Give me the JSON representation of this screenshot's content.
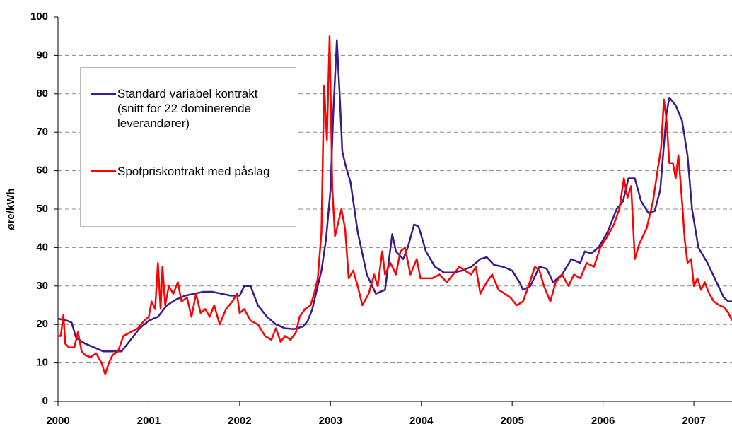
{
  "chart_data": {
    "type": "line",
    "y_label": "øre/kWh",
    "xlim": [
      2000,
      2007.42
    ],
    "xticks": [
      2000,
      2001,
      2002,
      2003,
      2004,
      2005,
      2006,
      2007
    ],
    "ylim": [
      0,
      100
    ],
    "yticks": [
      0,
      10,
      20,
      30,
      40,
      50,
      60,
      70,
      80,
      90,
      100
    ],
    "grid": true,
    "legend": "upper left",
    "series": [
      {
        "name": "Standard variabel kontrakt (snitt for 22 dominerende leverandører)",
        "color": "#3b1a8c",
        "x": [
          2000.0,
          2000.1,
          2000.15,
          2000.2,
          2000.3,
          2000.4,
          2000.5,
          2000.6,
          2000.7,
          2000.8,
          2000.9,
          2001.0,
          2001.1,
          2001.2,
          2001.3,
          2001.4,
          2001.5,
          2001.6,
          2001.7,
          2001.8,
          2001.9,
          2002.0,
          2002.05,
          2002.12,
          2002.2,
          2002.3,
          2002.4,
          2002.5,
          2002.6,
          2002.7,
          2002.75,
          2002.8,
          2002.85,
          2002.9,
          2002.95,
          2003.0,
          2003.03,
          2003.07,
          2003.1,
          2003.13,
          2003.17,
          2003.22,
          2003.3,
          2003.4,
          2003.5,
          2003.6,
          2003.65,
          2003.68,
          2003.72,
          2003.8,
          2003.85,
          2003.92,
          2003.97,
          2004.05,
          2004.15,
          2004.25,
          2004.35,
          2004.45,
          2004.55,
          2004.65,
          2004.72,
          2004.8,
          2004.9,
          2005.0,
          2005.08,
          2005.12,
          2005.2,
          2005.3,
          2005.38,
          2005.45,
          2005.55,
          2005.65,
          2005.75,
          2005.8,
          2005.87,
          2005.95,
          2006.05,
          2006.15,
          2006.22,
          2006.28,
          2006.35,
          2006.42,
          2006.5,
          2006.57,
          2006.63,
          2006.7,
          2006.73,
          2006.8,
          2006.87,
          2006.93,
          2006.98,
          2007.05,
          2007.15,
          2007.25,
          2007.33,
          2007.38,
          2007.42
        ],
        "values": [
          21.5,
          21,
          20.5,
          16.5,
          15,
          14,
          13,
          13,
          13,
          16,
          19,
          21,
          22,
          25,
          26.5,
          27.5,
          28,
          28.5,
          28.5,
          28,
          27.5,
          27.5,
          30,
          30,
          25,
          22,
          20,
          19,
          18.8,
          19.5,
          21,
          24,
          29,
          34,
          42,
          55,
          75,
          94,
          80,
          65,
          61,
          57,
          44,
          33,
          28,
          29,
          38,
          43.5,
          39,
          37,
          40,
          46,
          45.5,
          39,
          35,
          33.5,
          33.5,
          34,
          35,
          37,
          37.5,
          35.5,
          35,
          34,
          31,
          29,
          30,
          35,
          34.5,
          31,
          33,
          37,
          36,
          39,
          38.5,
          40,
          44,
          50,
          52,
          58,
          58,
          52,
          49,
          49.5,
          55,
          75,
          79,
          77,
          73,
          64,
          50,
          40,
          36,
          31,
          27,
          26,
          26
        ]
      },
      {
        "name": "Spotpriskontrakt med påslag",
        "color": "#ff0000",
        "x": [
          2000.0,
          2000.03,
          2000.06,
          2000.08,
          2000.12,
          2000.18,
          2000.22,
          2000.26,
          2000.3,
          2000.36,
          2000.42,
          2000.48,
          2000.52,
          2000.56,
          2000.6,
          2000.66,
          2000.72,
          2000.8,
          2000.88,
          2000.95,
          2001.0,
          2001.03,
          2001.07,
          2001.1,
          2001.13,
          2001.15,
          2001.18,
          2001.22,
          2001.27,
          2001.32,
          2001.36,
          2001.42,
          2001.47,
          2001.52,
          2001.57,
          2001.62,
          2001.67,
          2001.72,
          2001.78,
          2001.85,
          2001.92,
          2001.97,
          2002.0,
          2002.05,
          2002.12,
          2002.2,
          2002.28,
          2002.35,
          2002.4,
          2002.45,
          2002.5,
          2002.56,
          2002.62,
          2002.66,
          2002.72,
          2002.78,
          2002.82,
          2002.86,
          2002.9,
          2002.93,
          2002.96,
          2002.99,
          2003.02,
          2003.05,
          2003.09,
          2003.12,
          2003.16,
          2003.2,
          2003.25,
          2003.3,
          2003.35,
          2003.42,
          2003.48,
          2003.52,
          2003.57,
          2003.6,
          2003.66,
          2003.72,
          2003.77,
          2003.82,
          2003.88,
          2003.95,
          2003.99,
          2004.05,
          2004.12,
          2004.2,
          2004.28,
          2004.35,
          2004.42,
          2004.48,
          2004.55,
          2004.6,
          2004.65,
          2004.72,
          2004.78,
          2004.85,
          2004.92,
          2004.98,
          2005.05,
          2005.12,
          2005.18,
          2005.25,
          2005.3,
          2005.35,
          2005.42,
          2005.48,
          2005.55,
          2005.62,
          2005.68,
          2005.75,
          2005.82,
          2005.9,
          2005.97,
          2006.05,
          2006.12,
          2006.18,
          2006.23,
          2006.27,
          2006.31,
          2006.35,
          2006.4,
          2006.48,
          2006.55,
          2006.6,
          2006.64,
          2006.67,
          2006.7,
          2006.73,
          2006.77,
          2006.8,
          2006.83,
          2006.87,
          2006.9,
          2006.93,
          2006.97,
          2007.0,
          2007.04,
          2007.08,
          2007.12,
          2007.17,
          2007.22,
          2007.28,
          2007.33,
          2007.38,
          2007.42
        ],
        "values": [
          17,
          17,
          22.5,
          15,
          14,
          14,
          18,
          13,
          12,
          11.5,
          12.5,
          10,
          7,
          10,
          12,
          13,
          17,
          18,
          19,
          21,
          22,
          26,
          24,
          36,
          24,
          35,
          25,
          30,
          28,
          31,
          26,
          27,
          22,
          28,
          23,
          24,
          22,
          25,
          20,
          24,
          26,
          28,
          23,
          24,
          21,
          20,
          17,
          16,
          19,
          15.5,
          17,
          16,
          18,
          22,
          24,
          25,
          28,
          32,
          44,
          82,
          68,
          95,
          55,
          43,
          47,
          50,
          45,
          32,
          34,
          30,
          25,
          28,
          33,
          30,
          39,
          33,
          36,
          33,
          39,
          40,
          33,
          37,
          32,
          32,
          32,
          33,
          31,
          33,
          35,
          34,
          33,
          35,
          28,
          31,
          33,
          29,
          28,
          27,
          25,
          26,
          30,
          35,
          34,
          30,
          26,
          31,
          33,
          30,
          33,
          32,
          36,
          35,
          40,
          43,
          46,
          50,
          58,
          53,
          56,
          37,
          41,
          45,
          52,
          60,
          66,
          78.5,
          73,
          62,
          62,
          58,
          64,
          52,
          42,
          36,
          37,
          30,
          32,
          29,
          31,
          28,
          26,
          25,
          24.5,
          23,
          21
        ]
      }
    ]
  }
}
